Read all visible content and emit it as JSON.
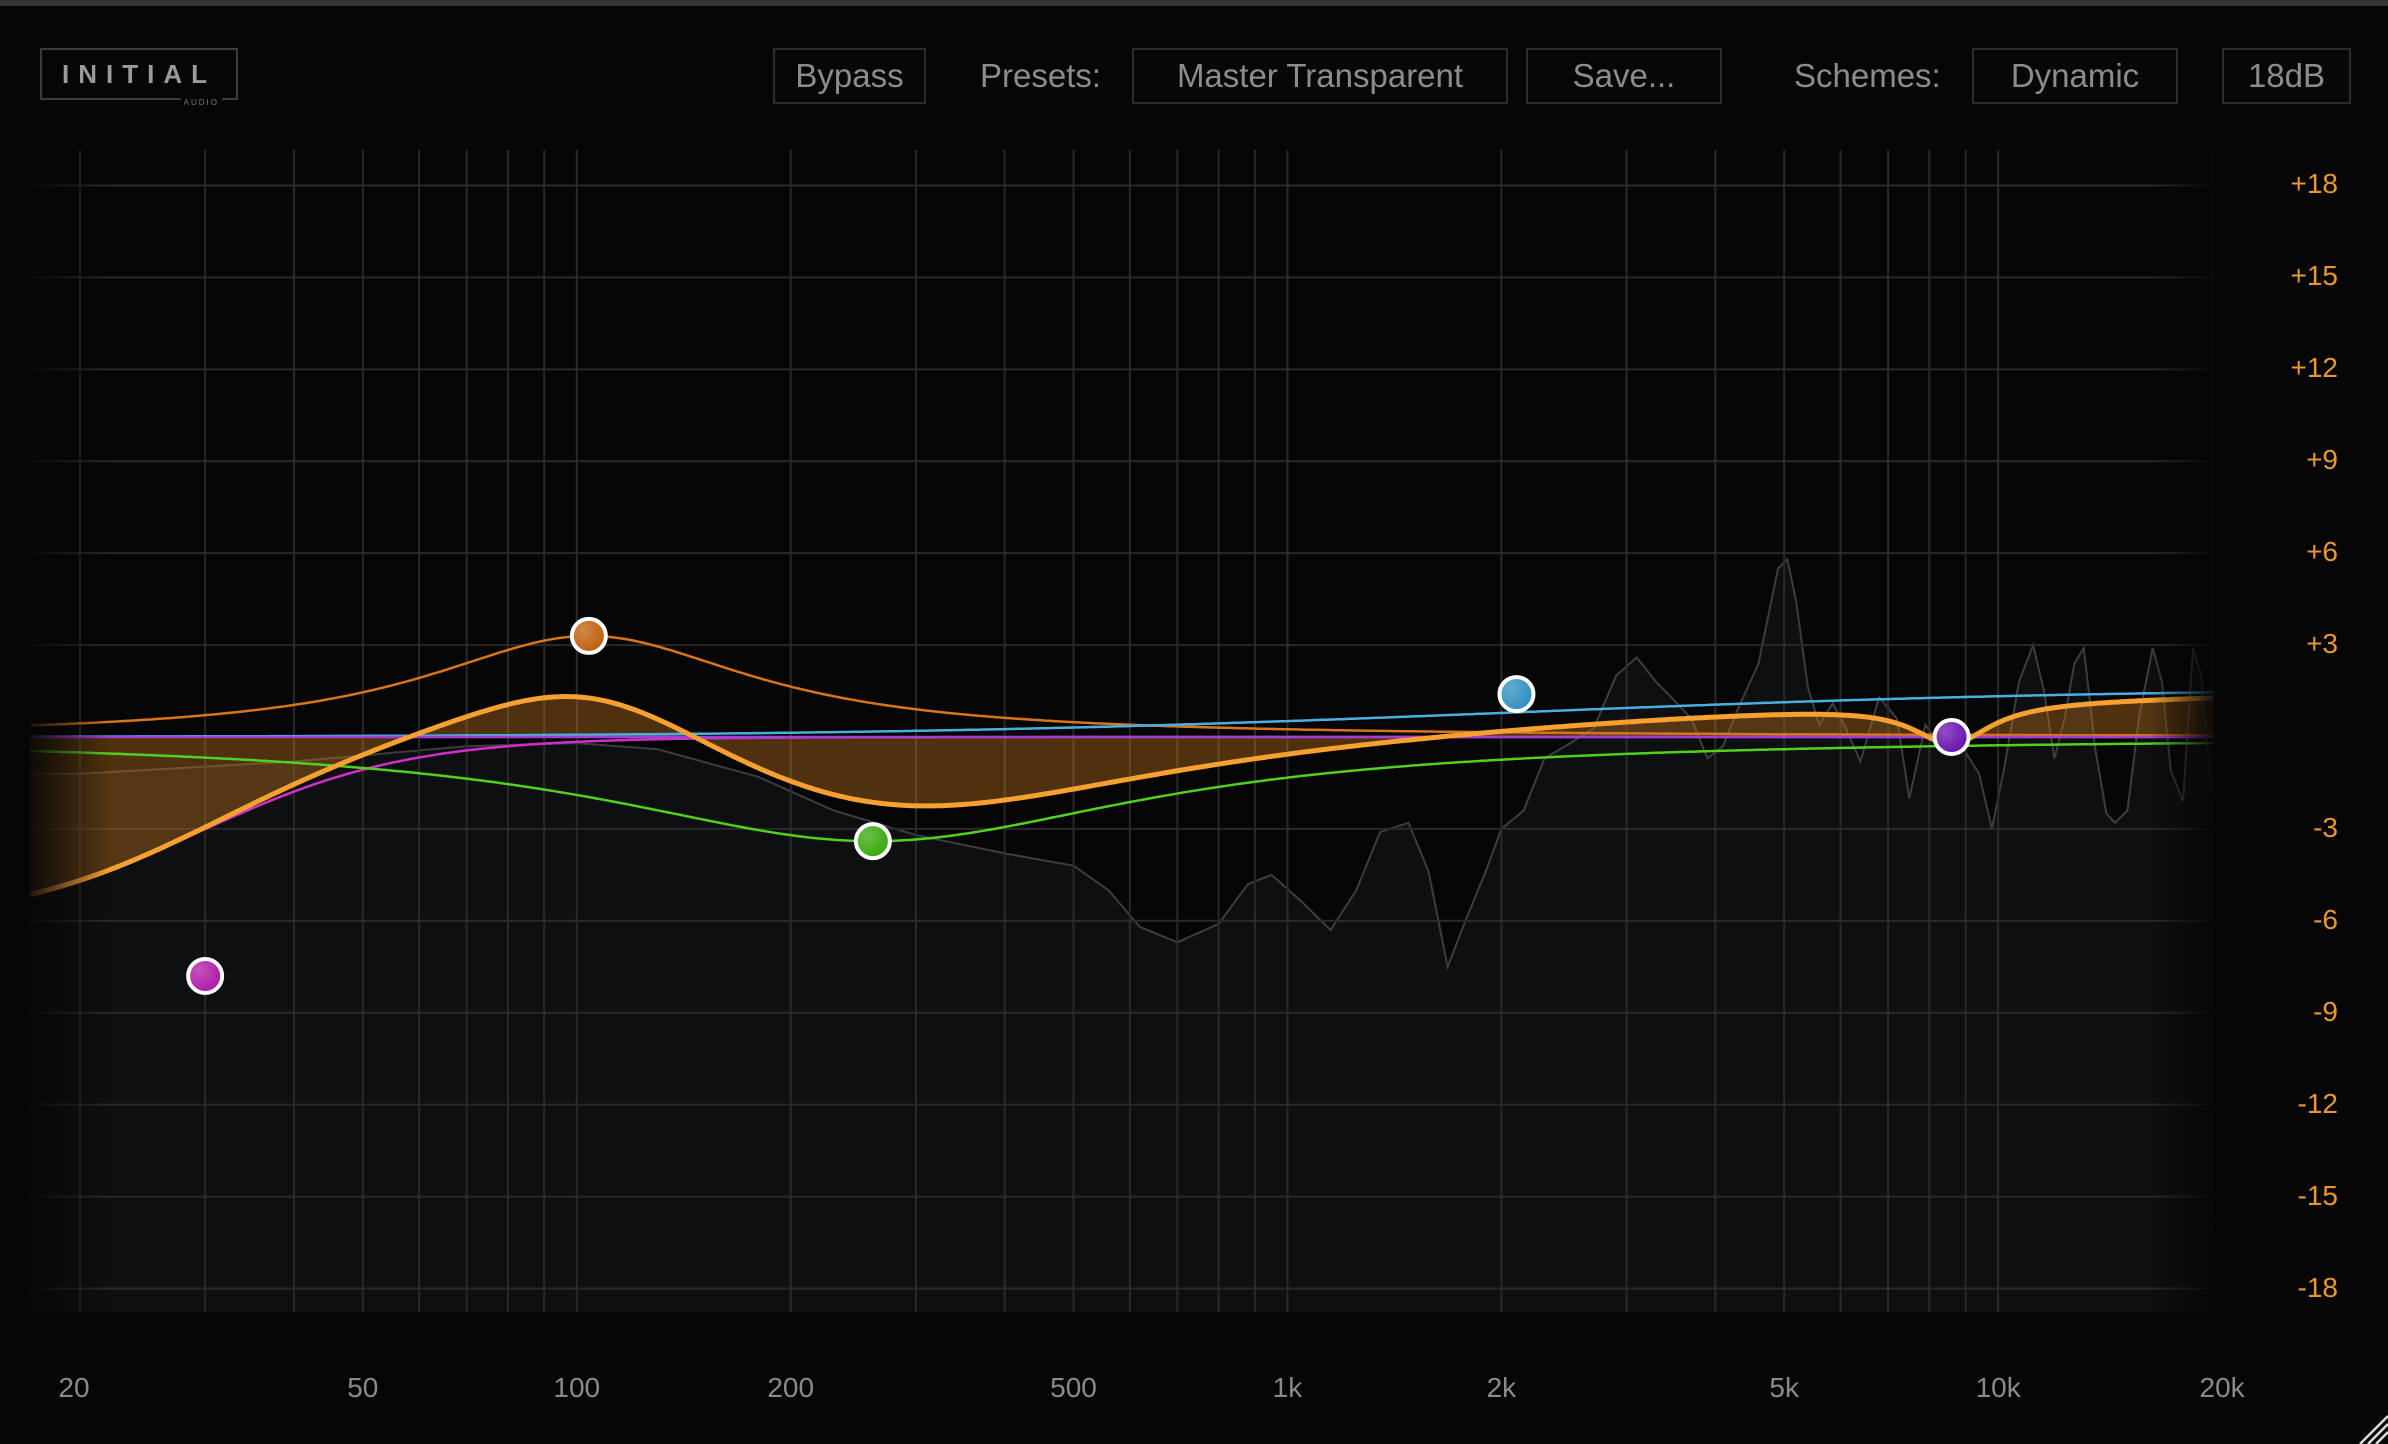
{
  "header": {
    "logo_text": "INITIAL",
    "logo_sub": "AUDIO",
    "bypass_label": "Bypass",
    "presets_label": "Presets:",
    "preset_value": "Master Transparent",
    "save_label": "Save...",
    "schemes_label": "Schemes:",
    "scheme_value": "Dynamic",
    "range_value": "18dB"
  },
  "chart_data": {
    "type": "line",
    "x_scale": "log",
    "xlim": [
      20,
      20000
    ],
    "ylim": [
      -18,
      18
    ],
    "grid": true,
    "y_tick_labels": [
      "+18",
      "+15",
      "+12",
      "+9",
      "+6",
      "+3",
      "-3",
      "-6",
      "-9",
      "-12",
      "-15",
      "-18"
    ],
    "y_ticks": [
      18,
      15,
      12,
      9,
      6,
      3,
      -3,
      -6,
      -9,
      -12,
      -15,
      -18
    ],
    "x_tick_labels": [
      "20",
      "50",
      "100",
      "200",
      "500",
      "1k",
      "2k",
      "5k",
      "10k",
      "20k"
    ],
    "x_ticks": [
      20,
      50,
      100,
      200,
      500,
      1000,
      2000,
      5000,
      10000,
      20000
    ],
    "bands": [
      {
        "name": "band-1",
        "type": "low-cut",
        "freq": 30,
        "gain": -7.8,
        "color": "#b01aa8",
        "line_color": "#d030c8"
      },
      {
        "name": "band-2",
        "type": "bell",
        "freq": 104,
        "gain": 3.3,
        "color": "#c0600a",
        "line_color": "#d8741c"
      },
      {
        "name": "band-3",
        "type": "bell",
        "freq": 261,
        "gain": -3.4,
        "color": "#3aa80c",
        "line_color": "#52d020"
      },
      {
        "name": "band-4",
        "type": "high-shelf",
        "freq": 2100,
        "gain": 1.4,
        "color": "#2f8fc0",
        "line_color": "#4aaee0"
      },
      {
        "name": "band-5",
        "type": "notch",
        "freq": 8600,
        "gain": 0,
        "color": "#6a12b0",
        "line_color": "#a040d0"
      }
    ],
    "combined_color": "#f5a030",
    "analyzer_spectrum": [
      [
        20,
        -1.2
      ],
      [
        40,
        -0.8
      ],
      [
        70,
        -0.3
      ],
      [
        100,
        -0.2
      ],
      [
        130,
        -0.4
      ],
      [
        180,
        -1.3
      ],
      [
        230,
        -2.4
      ],
      [
        300,
        -3.2
      ],
      [
        400,
        -3.8
      ],
      [
        500,
        -4.2
      ],
      [
        560,
        -5.0
      ],
      [
        620,
        -6.2
      ],
      [
        700,
        -6.7
      ],
      [
        800,
        -6.1
      ],
      [
        880,
        -4.8
      ],
      [
        950,
        -4.5
      ],
      [
        1050,
        -5.4
      ],
      [
        1150,
        -6.3
      ],
      [
        1250,
        -5.0
      ],
      [
        1350,
        -3.1
      ],
      [
        1480,
        -2.8
      ],
      [
        1580,
        -4.4
      ],
      [
        1680,
        -7.5
      ],
      [
        1780,
        -6.0
      ],
      [
        1900,
        -4.4
      ],
      [
        2000,
        -3.0
      ],
      [
        2150,
        -2.4
      ],
      [
        2300,
        -0.7
      ],
      [
        2500,
        -0.2
      ],
      [
        2700,
        0.3
      ],
      [
        2900,
        2.0
      ],
      [
        3100,
        2.6
      ],
      [
        3300,
        1.8
      ],
      [
        3500,
        1.2
      ],
      [
        3700,
        0.6
      ],
      [
        3900,
        -0.7
      ],
      [
        4100,
        -0.3
      ],
      [
        4300,
        0.9
      ],
      [
        4600,
        2.4
      ],
      [
        4900,
        5.5
      ],
      [
        5050,
        5.8
      ],
      [
        5200,
        4.4
      ],
      [
        5400,
        1.6
      ],
      [
        5600,
        0.4
      ],
      [
        5850,
        1.1
      ],
      [
        6100,
        0.3
      ],
      [
        6400,
        -0.8
      ],
      [
        6800,
        1.3
      ],
      [
        7200,
        0.6
      ],
      [
        7500,
        -2.0
      ],
      [
        7900,
        0.4
      ],
      [
        8300,
        -0.3
      ],
      [
        8700,
        0.4
      ],
      [
        9000,
        -0.5
      ],
      [
        9400,
        -1.2
      ],
      [
        9800,
        -3.0
      ],
      [
        10200,
        -1.0
      ],
      [
        10700,
        1.8
      ],
      [
        11200,
        3.0
      ],
      [
        11600,
        1.5
      ],
      [
        12000,
        -0.7
      ],
      [
        12400,
        0.6
      ],
      [
        12800,
        2.4
      ],
      [
        13200,
        2.9
      ],
      [
        13700,
        -0.4
      ],
      [
        14200,
        -2.5
      ],
      [
        14600,
        -2.8
      ],
      [
        15200,
        -2.4
      ],
      [
        15800,
        0.7
      ],
      [
        16500,
        2.9
      ],
      [
        17000,
        1.8
      ],
      [
        17500,
        -1.1
      ],
      [
        18200,
        -2.1
      ],
      [
        18800,
        2.9
      ],
      [
        19300,
        2.0
      ],
      [
        20000,
        -2.0
      ]
    ]
  }
}
